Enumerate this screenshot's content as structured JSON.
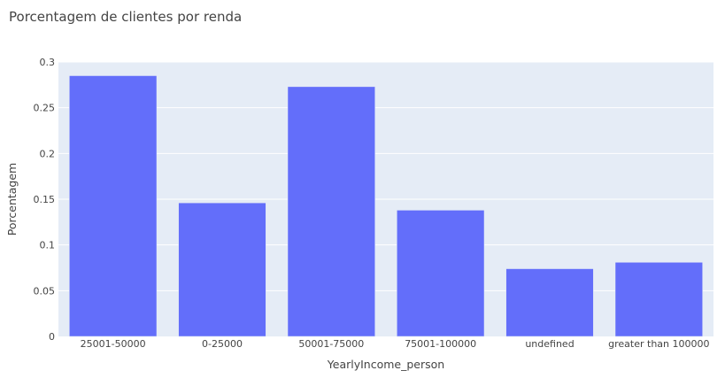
{
  "chart_data": {
    "type": "bar",
    "title": "Porcentagem de clientes por renda",
    "xlabel": "YearlyIncome_person",
    "ylabel": "Porcentagem",
    "categories": [
      "25001-50000",
      "0-25000",
      "50001-75000",
      "75001-100000",
      "undefined",
      "greater than 100000"
    ],
    "values": [
      0.285,
      0.146,
      0.273,
      0.138,
      0.074,
      0.081
    ],
    "ylim": [
      0,
      0.3
    ],
    "yticks": [
      0,
      0.05,
      0.1,
      0.15,
      0.2,
      0.25,
      0.3
    ],
    "ytick_labels": [
      "0",
      "0.05",
      "0.1",
      "0.15",
      "0.2",
      "0.25",
      "0.3"
    ],
    "grid": true,
    "colors": {
      "bar": "#636efa",
      "plot_background": "#e5ecf6",
      "grid": "#ffffff",
      "text": "#444444"
    }
  }
}
